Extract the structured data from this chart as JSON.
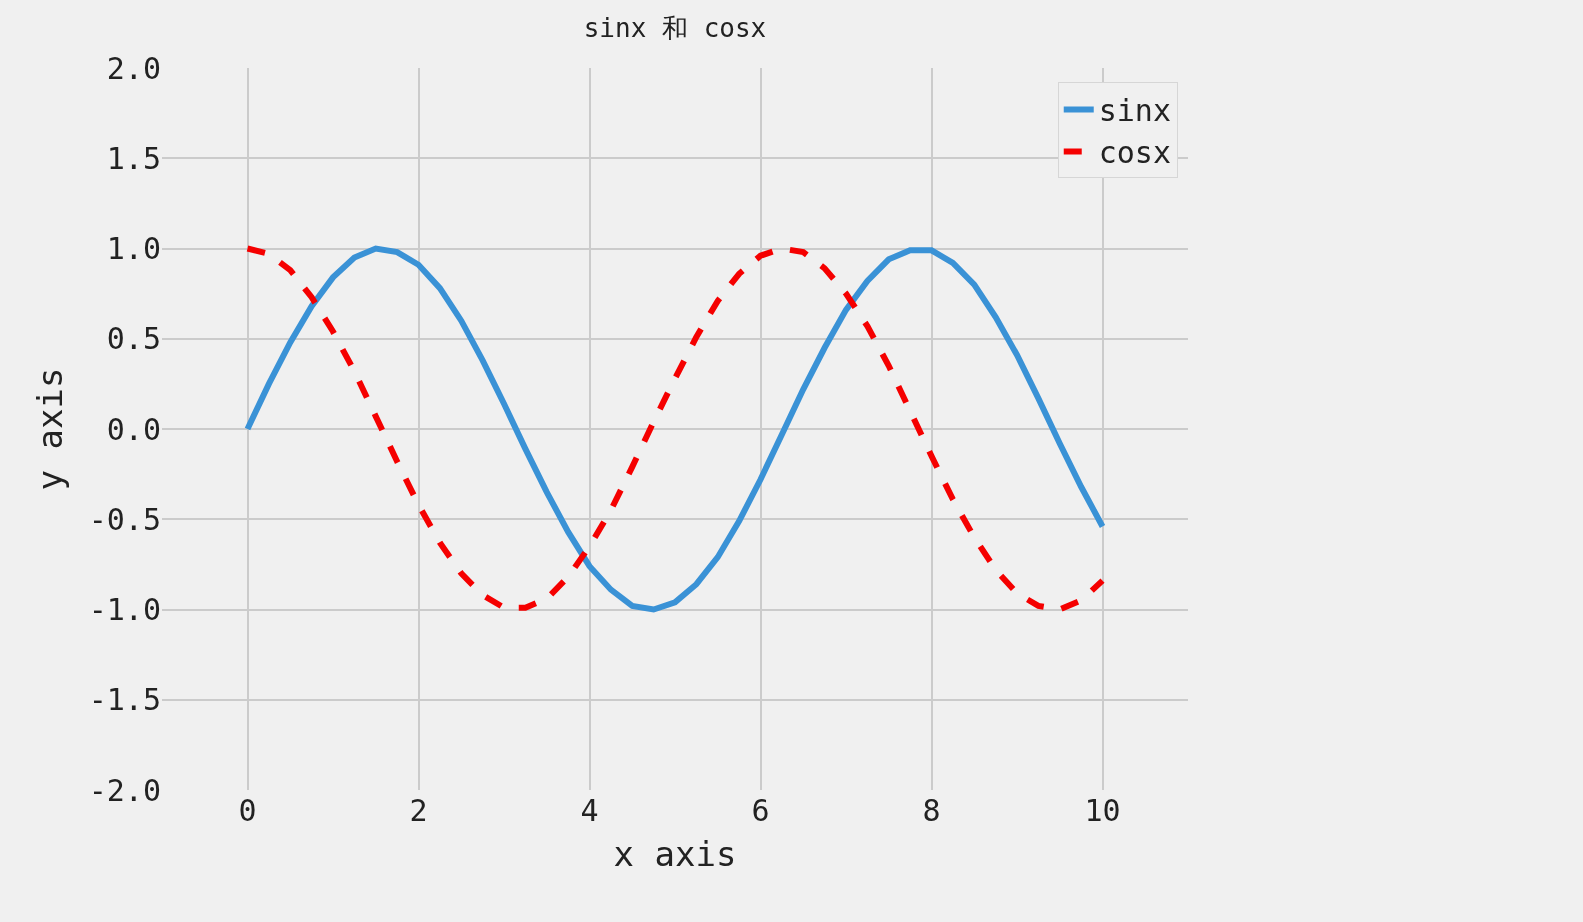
{
  "chart_data": {
    "type": "line",
    "title": "sinx 和 cosx",
    "xlabel": "x axis",
    "ylabel": "y axis",
    "x": [
      0,
      0.25,
      0.5,
      0.75,
      1,
      1.25,
      1.5,
      1.75,
      2,
      2.25,
      2.5,
      2.75,
      3,
      3.25,
      3.5,
      3.75,
      4,
      4.25,
      4.5,
      4.75,
      5,
      5.25,
      5.5,
      5.75,
      6,
      6.25,
      6.5,
      6.75,
      7,
      7.25,
      7.5,
      7.75,
      8,
      8.25,
      8.5,
      8.75,
      9,
      9.25,
      9.5,
      9.75,
      10
    ],
    "series": [
      {
        "name": "sinx",
        "color": "#3a92d6",
        "line_style": "solid",
        "values": [
          0.0,
          0.25,
          0.48,
          0.68,
          0.84,
          0.95,
          1.0,
          0.98,
          0.91,
          0.78,
          0.6,
          0.38,
          0.14,
          -0.11,
          -0.35,
          -0.57,
          -0.76,
          -0.89,
          -0.98,
          -1.0,
          -0.96,
          -0.86,
          -0.71,
          -0.51,
          -0.28,
          -0.03,
          0.22,
          0.45,
          0.66,
          0.82,
          0.94,
          0.99,
          0.99,
          0.92,
          0.8,
          0.62,
          0.41,
          0.17,
          -0.08,
          -0.32,
          -0.54
        ]
      },
      {
        "name": "cosx",
        "color": "#f50000",
        "line_style": "dashed",
        "values": [
          1.0,
          0.97,
          0.88,
          0.73,
          0.54,
          0.32,
          0.07,
          -0.18,
          -0.42,
          -0.63,
          -0.8,
          -0.92,
          -0.99,
          -0.99,
          -0.94,
          -0.82,
          -0.65,
          -0.45,
          -0.21,
          0.04,
          0.28,
          0.51,
          0.71,
          0.86,
          0.96,
          1.0,
          0.98,
          0.89,
          0.75,
          0.57,
          0.35,
          0.1,
          -0.15,
          -0.39,
          -0.6,
          -0.78,
          -0.91,
          -0.98,
          -1.0,
          -0.95,
          -0.84
        ]
      }
    ],
    "xlim": [
      -1,
      11
    ],
    "xticks": [
      0,
      2,
      4,
      6,
      8,
      10
    ],
    "ylim": [
      -2,
      2
    ],
    "yticks": [
      {
        "value": -2,
        "label": "-2.0"
      },
      {
        "value": -1.5,
        "label": "-1.5"
      },
      {
        "value": -1,
        "label": "-1.0"
      },
      {
        "value": -0.5,
        "label": "-0.5"
      },
      {
        "value": 0,
        "label": "0.0"
      },
      {
        "value": 0.5,
        "label": "0.5"
      },
      {
        "value": 1,
        "label": "1.0"
      },
      {
        "value": 1.5,
        "label": "1.5"
      },
      {
        "value": 2,
        "label": "2.0"
      }
    ],
    "grid": true,
    "legend": "top right",
    "marker": "none"
  }
}
